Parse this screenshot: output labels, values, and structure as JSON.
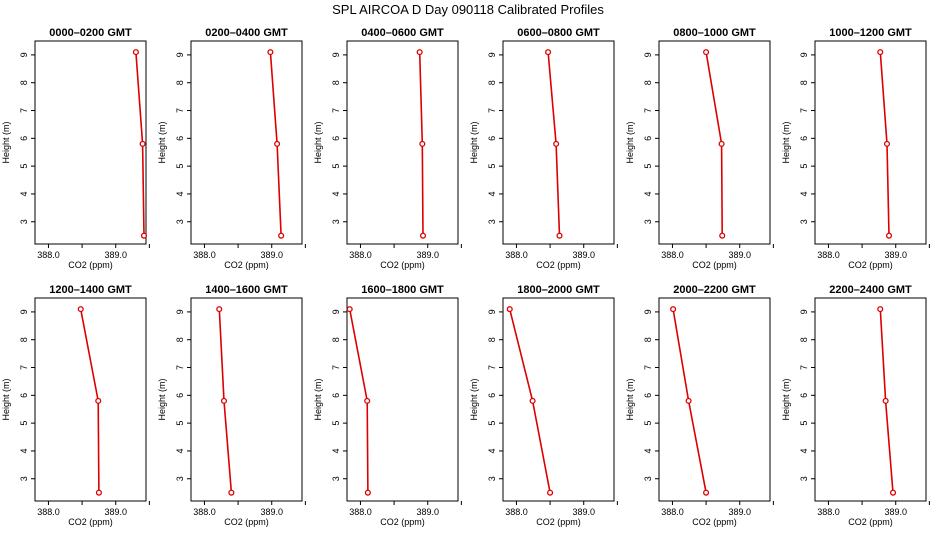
{
  "figure": {
    "title": "SPL AIRCOA D  Day 090118  Calibrated Profiles"
  },
  "colors": {
    "line": "#dd0000",
    "axes": "#000000"
  },
  "chart_data": [
    {
      "type": "line",
      "title": "0000–0200 GMT",
      "xlabel": "CO2 (ppm)",
      "ylabel": "Height (m)",
      "xlim": [
        387.8,
        389.45
      ],
      "ylim": [
        2.2,
        9.5
      ],
      "x_ticks": [
        388.0,
        388.5,
        389.0,
        389.5
      ],
      "x_tick_labels": [
        "388.0",
        "",
        "389.0",
        ""
      ],
      "y_ticks": [
        3,
        4,
        5,
        6,
        7,
        8,
        9
      ],
      "x": [
        389.3,
        389.4,
        389.42
      ],
      "y": [
        9.1,
        5.8,
        2.5
      ]
    },
    {
      "type": "line",
      "title": "0200–0400 GMT",
      "xlabel": "CO2 (ppm)",
      "ylabel": "Height (m)",
      "xlim": [
        387.8,
        389.45
      ],
      "ylim": [
        2.2,
        9.5
      ],
      "x_ticks": [
        388.0,
        388.5,
        389.0,
        389.5
      ],
      "x_tick_labels": [
        "388.0",
        "",
        "389.0",
        ""
      ],
      "y_ticks": [
        3,
        4,
        5,
        6,
        7,
        8,
        9
      ],
      "x": [
        388.98,
        389.08,
        389.14
      ],
      "y": [
        9.1,
        5.8,
        2.5
      ]
    },
    {
      "type": "line",
      "title": "0400–0600 GMT",
      "xlabel": "CO2 (ppm)",
      "ylabel": "Height (m)",
      "xlim": [
        387.8,
        389.45
      ],
      "ylim": [
        2.2,
        9.5
      ],
      "x_ticks": [
        388.0,
        388.5,
        389.0,
        389.5
      ],
      "x_tick_labels": [
        "388.0",
        "",
        "389.0",
        ""
      ],
      "y_ticks": [
        3,
        4,
        5,
        6,
        7,
        8,
        9
      ],
      "x": [
        388.88,
        388.92,
        388.93
      ],
      "y": [
        9.1,
        5.8,
        2.5
      ]
    },
    {
      "type": "line",
      "title": "0600–0800 GMT",
      "xlabel": "CO2 (ppm)",
      "ylabel": "Height (m)",
      "xlim": [
        387.8,
        389.45
      ],
      "ylim": [
        2.2,
        9.5
      ],
      "x_ticks": [
        388.0,
        388.5,
        389.0,
        389.5
      ],
      "x_tick_labels": [
        "388.0",
        "",
        "389.0",
        ""
      ],
      "y_ticks": [
        3,
        4,
        5,
        6,
        7,
        8,
        9
      ],
      "x": [
        388.47,
        388.59,
        388.64
      ],
      "y": [
        9.1,
        5.8,
        2.5
      ]
    },
    {
      "type": "line",
      "title": "0800–1000 GMT",
      "xlabel": "CO2 (ppm)",
      "ylabel": "Height (m)",
      "xlim": [
        387.8,
        389.45
      ],
      "ylim": [
        2.2,
        9.5
      ],
      "x_ticks": [
        388.0,
        388.5,
        389.0,
        389.5
      ],
      "x_tick_labels": [
        "388.0",
        "",
        "389.0",
        ""
      ],
      "y_ticks": [
        3,
        4,
        5,
        6,
        7,
        8,
        9
      ],
      "x": [
        388.5,
        388.73,
        388.74
      ],
      "y": [
        9.1,
        5.8,
        2.5
      ]
    },
    {
      "type": "line",
      "title": "1000–1200 GMT",
      "xlabel": "CO2 (ppm)",
      "ylabel": "Height (m)",
      "xlim": [
        387.8,
        389.45
      ],
      "ylim": [
        2.2,
        9.5
      ],
      "x_ticks": [
        388.0,
        388.5,
        389.0,
        389.5
      ],
      "x_tick_labels": [
        "388.0",
        "",
        "389.0",
        ""
      ],
      "y_ticks": [
        3,
        4,
        5,
        6,
        7,
        8,
        9
      ],
      "x": [
        388.77,
        388.87,
        388.9
      ],
      "y": [
        9.1,
        5.8,
        2.5
      ]
    },
    {
      "type": "line",
      "title": "1200–1400 GMT",
      "xlabel": "CO2 (ppm)",
      "ylabel": "Height (m)",
      "xlim": [
        387.8,
        389.45
      ],
      "ylim": [
        2.2,
        9.5
      ],
      "x_ticks": [
        388.0,
        388.5,
        389.0,
        389.5
      ],
      "x_tick_labels": [
        "388.0",
        "",
        "389.0",
        ""
      ],
      "y_ticks": [
        3,
        4,
        5,
        6,
        7,
        8,
        9
      ],
      "x": [
        388.48,
        388.74,
        388.75
      ],
      "y": [
        9.1,
        5.8,
        2.5
      ]
    },
    {
      "type": "line",
      "title": "1400–1600 GMT",
      "xlabel": "CO2 (ppm)",
      "ylabel": "Height (m)",
      "xlim": [
        387.8,
        389.45
      ],
      "ylim": [
        2.2,
        9.5
      ],
      "x_ticks": [
        388.0,
        388.5,
        389.0,
        389.5
      ],
      "x_tick_labels": [
        "388.0",
        "",
        "389.0",
        ""
      ],
      "y_ticks": [
        3,
        4,
        5,
        6,
        7,
        8,
        9
      ],
      "x": [
        388.22,
        388.29,
        388.4
      ],
      "y": [
        9.1,
        5.8,
        2.5
      ]
    },
    {
      "type": "line",
      "title": "1600–1800 GMT",
      "xlabel": "CO2 (ppm)",
      "ylabel": "Height (m)",
      "xlim": [
        387.8,
        389.45
      ],
      "ylim": [
        2.2,
        9.5
      ],
      "x_ticks": [
        388.0,
        388.5,
        389.0,
        389.5
      ],
      "x_tick_labels": [
        "388.0",
        "",
        "389.0",
        ""
      ],
      "y_ticks": [
        3,
        4,
        5,
        6,
        7,
        8,
        9
      ],
      "x": [
        387.84,
        388.1,
        388.11
      ],
      "y": [
        9.1,
        5.8,
        2.5
      ]
    },
    {
      "type": "line",
      "title": "1800–2000 GMT",
      "xlabel": "CO2 (ppm)",
      "ylabel": "Height (m)",
      "xlim": [
        387.8,
        389.45
      ],
      "ylim": [
        2.2,
        9.5
      ],
      "x_ticks": [
        388.0,
        388.5,
        389.0,
        389.5
      ],
      "x_tick_labels": [
        "388.0",
        "",
        "389.0",
        ""
      ],
      "y_ticks": [
        3,
        4,
        5,
        6,
        7,
        8,
        9
      ],
      "x": [
        387.9,
        388.24,
        388.5
      ],
      "y": [
        9.1,
        5.8,
        2.5
      ]
    },
    {
      "type": "line",
      "title": "2000–2200 GMT",
      "xlabel": "CO2 (ppm)",
      "ylabel": "Height (m)",
      "xlim": [
        387.8,
        389.45
      ],
      "ylim": [
        2.2,
        9.5
      ],
      "x_ticks": [
        388.0,
        388.5,
        389.0,
        389.5
      ],
      "x_tick_labels": [
        "388.0",
        "",
        "389.0",
        ""
      ],
      "y_ticks": [
        3,
        4,
        5,
        6,
        7,
        8,
        9
      ],
      "x": [
        388.01,
        388.24,
        388.5
      ],
      "y": [
        9.1,
        5.8,
        2.5
      ]
    },
    {
      "type": "line",
      "title": "2200–2400 GMT",
      "xlabel": "CO2 (ppm)",
      "ylabel": "Height (m)",
      "xlim": [
        387.8,
        389.45
      ],
      "ylim": [
        2.2,
        9.5
      ],
      "x_ticks": [
        388.0,
        388.5,
        389.0,
        389.5
      ],
      "x_tick_labels": [
        "388.0",
        "",
        "389.0",
        ""
      ],
      "y_ticks": [
        3,
        4,
        5,
        6,
        7,
        8,
        9
      ],
      "x": [
        388.77,
        388.85,
        388.96
      ],
      "y": [
        9.1,
        5.8,
        2.5
      ]
    }
  ]
}
